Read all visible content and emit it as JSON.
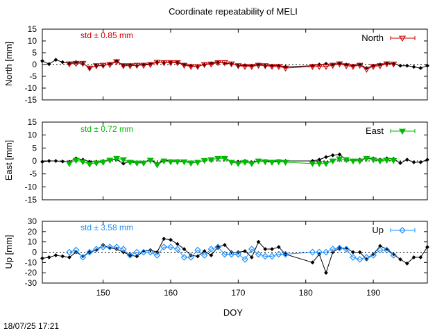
{
  "title": "Coordinate repeatability of MELI",
  "footer": "18/07/25 17:21",
  "chart_data": [
    {
      "type": "line",
      "ylabel": "North [mm]",
      "xlabel": "",
      "xlim": [
        141,
        198
      ],
      "ylim": [
        -15,
        15
      ],
      "yticks": [
        -15,
        -10,
        -5,
        0,
        5,
        10,
        15
      ],
      "std_label": "std ± 0.85 mm",
      "color": "#cc0000",
      "series": [
        {
          "name": "",
          "x": [
            141,
            142,
            143,
            144,
            145,
            146,
            147,
            148,
            149,
            150,
            151,
            152,
            153,
            154,
            155,
            156,
            157,
            158,
            159,
            160,
            161,
            162,
            163,
            164,
            165,
            166,
            167,
            168,
            169,
            170,
            171,
            172,
            173,
            174,
            175,
            176,
            177,
            181,
            182,
            183,
            184,
            185,
            186,
            187,
            188,
            189,
            190,
            191,
            192,
            193,
            194,
            195,
            196,
            197,
            198
          ],
          "y": [
            1.5,
            0.2,
            2.0,
            1.0,
            0.5,
            1.0,
            0.5,
            -1.5,
            -0.5,
            -0.5,
            0.3,
            1.5,
            -0.3,
            -0.2,
            -0.5,
            0.0,
            0.3,
            1.0,
            0.8,
            1.0,
            1.0,
            0.0,
            -0.5,
            -0.8,
            0.0,
            0.5,
            1.0,
            0.5,
            0.3,
            -0.5,
            -0.3,
            -0.5,
            0.0,
            -0.5,
            -0.5,
            -0.5,
            -1.0,
            -0.5,
            0.0,
            0.3,
            0.0,
            0.5,
            0.0,
            -0.5,
            0.0,
            -1.5,
            -0.5,
            0.0,
            0.5,
            0.3,
            -0.5,
            -0.5,
            -1.0,
            -1.5,
            -0.5
          ]
        },
        {
          "name": "North",
          "x": [
            145,
            146,
            147,
            148,
            149,
            150,
            151,
            152,
            153,
            154,
            155,
            156,
            157,
            158,
            159,
            160,
            161,
            162,
            163,
            164,
            165,
            166,
            167,
            168,
            169,
            170,
            171,
            172,
            173,
            174,
            175,
            176,
            177,
            181,
            182,
            183,
            184,
            185,
            186,
            187,
            188,
            189,
            190,
            191,
            192,
            193
          ],
          "y": [
            0.3,
            0.5,
            0.5,
            -1.5,
            -0.5,
            -0.3,
            0.0,
            1.2,
            -0.5,
            -0.5,
            -0.3,
            -0.3,
            0.0,
            1.0,
            0.8,
            0.8,
            0.8,
            -0.3,
            -0.8,
            -0.8,
            0.0,
            0.2,
            0.8,
            0.8,
            0.3,
            -0.5,
            -0.8,
            -0.8,
            -0.3,
            -0.5,
            -0.8,
            -0.8,
            -1.5,
            -0.8,
            -0.8,
            -0.8,
            -0.3,
            0.3,
            -0.5,
            -0.8,
            -0.3,
            -2.0,
            -0.8,
            -0.5,
            0.3,
            0.2
          ]
        }
      ]
    },
    {
      "type": "line",
      "ylabel": "East [mm]",
      "xlabel": "",
      "xlim": [
        141,
        198
      ],
      "ylim": [
        -15,
        15
      ],
      "yticks": [
        -15,
        -10,
        -5,
        0,
        5,
        10,
        15
      ],
      "std_label": "std ± 0.72 mm",
      "color": "#00bb00",
      "series": [
        {
          "name": "",
          "x": [
            141,
            142,
            143,
            144,
            145,
            146,
            147,
            148,
            149,
            150,
            151,
            152,
            153,
            154,
            155,
            156,
            157,
            158,
            159,
            160,
            161,
            162,
            163,
            164,
            165,
            166,
            167,
            168,
            169,
            170,
            171,
            172,
            173,
            174,
            175,
            176,
            177,
            181,
            182,
            183,
            184,
            185,
            186,
            187,
            188,
            189,
            190,
            191,
            192,
            193,
            194,
            195,
            196,
            197,
            198
          ],
          "y": [
            -0.3,
            0.0,
            0.0,
            -0.2,
            -0.3,
            1.0,
            0.5,
            -0.3,
            -0.3,
            0.0,
            0.5,
            0.5,
            -1.0,
            -0.2,
            -0.5,
            -0.5,
            0.5,
            -1.0,
            0.2,
            0.0,
            0.0,
            -0.2,
            -0.5,
            -0.5,
            0.2,
            0.5,
            1.0,
            1.2,
            -0.3,
            -0.3,
            0.0,
            -0.5,
            0.0,
            0.0,
            -0.2,
            0.0,
            0.0,
            0.0,
            0.5,
            1.5,
            2.2,
            2.5,
            0.5,
            0.2,
            0.5,
            1.0,
            1.0,
            0.5,
            1.0,
            0.8,
            -0.8,
            0.5,
            -0.5,
            -0.5,
            0.5
          ]
        },
        {
          "name": "East",
          "x": [
            145,
            146,
            147,
            148,
            149,
            150,
            151,
            152,
            153,
            154,
            155,
            156,
            157,
            158,
            159,
            160,
            161,
            162,
            163,
            164,
            165,
            166,
            167,
            168,
            169,
            170,
            171,
            172,
            173,
            174,
            175,
            176,
            177,
            181,
            182,
            183,
            184,
            185,
            186,
            187,
            188,
            189,
            190,
            191,
            192,
            193
          ],
          "y": [
            -1.0,
            0.3,
            -0.3,
            -1.2,
            -0.8,
            -0.5,
            0.3,
            1.0,
            0.5,
            -0.5,
            -0.8,
            -0.8,
            0.3,
            -1.5,
            0.0,
            -0.3,
            -0.3,
            -0.3,
            -0.8,
            -0.5,
            0.2,
            0.5,
            1.0,
            1.0,
            -0.5,
            -1.0,
            -0.5,
            -1.0,
            0.0,
            -0.3,
            -0.5,
            -0.3,
            -0.5,
            -1.0,
            -1.0,
            -1.0,
            0.0,
            0.8,
            0.5,
            0.0,
            0.0,
            1.0,
            0.5,
            0.0,
            0.3,
            0.2
          ]
        }
      ]
    },
    {
      "type": "line",
      "ylabel": "Up [mm]",
      "xlabel": "DOY",
      "xlim": [
        141,
        198
      ],
      "ylim": [
        -30,
        30
      ],
      "yticks": [
        -30,
        -20,
        -10,
        0,
        10,
        20,
        30
      ],
      "xticks": [
        150,
        160,
        170,
        180,
        190
      ],
      "std_label": "std ± 3.58 mm",
      "color": "#1e90ff",
      "series": [
        {
          "name": "",
          "x": [
            141,
            142,
            143,
            144,
            145,
            146,
            147,
            148,
            149,
            150,
            151,
            152,
            153,
            154,
            155,
            156,
            157,
            158,
            159,
            160,
            161,
            162,
            163,
            164,
            165,
            166,
            167,
            168,
            169,
            170,
            171,
            172,
            173,
            174,
            175,
            176,
            177,
            181,
            182,
            183,
            184,
            185,
            186,
            187,
            188,
            189,
            190,
            191,
            192,
            193,
            194,
            195,
            196,
            197,
            198
          ],
          "y": [
            -6,
            -5,
            -3,
            -4,
            -5,
            0,
            -4,
            0,
            2,
            7,
            4,
            3,
            0,
            -3,
            -4,
            1,
            2,
            0,
            13,
            12,
            8,
            3,
            -3,
            -4,
            1,
            -3,
            5,
            7,
            0,
            0,
            1,
            -5,
            10,
            3,
            3,
            5,
            -2,
            -10,
            -2,
            -20,
            0,
            4,
            4,
            0,
            0,
            -7,
            -2,
            6,
            3,
            -2,
            -7,
            -11,
            -5,
            -5,
            5
          ]
        },
        {
          "name": "Up",
          "x": [
            145,
            146,
            147,
            148,
            149,
            150,
            151,
            152,
            153,
            154,
            155,
            156,
            157,
            158,
            159,
            160,
            161,
            162,
            163,
            164,
            165,
            166,
            167,
            168,
            169,
            170,
            171,
            172,
            173,
            174,
            175,
            176,
            177,
            181,
            182,
            183,
            184,
            185,
            186,
            187,
            188,
            189,
            190,
            191,
            192,
            193
          ],
          "y": [
            0,
            2,
            -5,
            0,
            3,
            5,
            5,
            5,
            3,
            -3,
            0,
            0,
            0,
            -3,
            5,
            5,
            3,
            -5,
            -5,
            2,
            -3,
            3,
            5,
            -2,
            -2,
            -2,
            -7,
            3,
            -2,
            -4,
            -4,
            -2,
            -2,
            0,
            0,
            0,
            3,
            4,
            3,
            -5,
            -7,
            -5,
            -3,
            2,
            2,
            -3
          ]
        }
      ]
    }
  ]
}
